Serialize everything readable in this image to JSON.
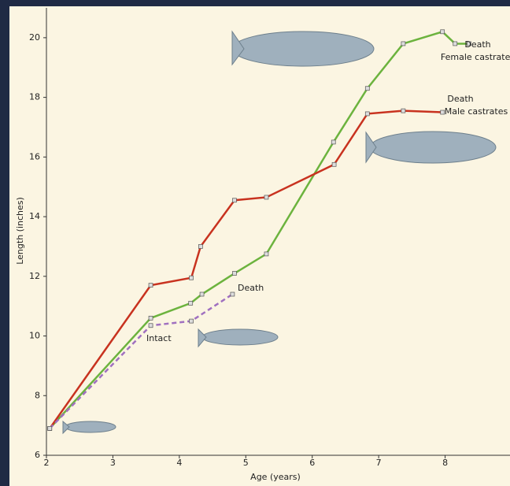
{
  "chart_data": {
    "type": "line",
    "x_label": "Age (years)",
    "y_label": "Length (inches)",
    "xlim": [
      2,
      9
    ],
    "xticks": [
      2,
      3,
      4,
      5,
      6,
      7,
      8
    ],
    "ylim": [
      6,
      21
    ],
    "yticks": [
      6,
      8,
      10,
      12,
      14,
      16,
      18,
      20
    ],
    "series": [
      {
        "color": "#6cb33e",
        "dashed": false,
        "x": [
          2.05,
          3.57,
          4.17,
          4.34,
          4.83,
          5.31,
          6.32,
          6.83,
          7.37,
          7.96,
          8.15,
          8.36
        ],
        "values": [
          6.9,
          10.6,
          11.1,
          11.4,
          12.1,
          12.75,
          16.5,
          18.3,
          19.8,
          20.2,
          19.8,
          19.8
        ]
      },
      {
        "color": "#c8321f",
        "dashed": false,
        "x": [
          2.05,
          3.57,
          4.18,
          4.32,
          4.83,
          5.31,
          6.33,
          6.83,
          7.37,
          7.96
        ],
        "values": [
          6.9,
          11.7,
          11.95,
          13.0,
          14.55,
          14.65,
          15.75,
          17.45,
          17.55,
          17.5
        ]
      },
      {
        "color": "#a070c0",
        "dashed": true,
        "x": [
          2.05,
          3.57,
          4.18,
          4.8
        ],
        "values": [
          6.9,
          10.35,
          10.5,
          11.4
        ]
      }
    ],
    "annotations": [
      "Death",
      "Female castrates",
      "Death",
      "Male castrates",
      "Death",
      "Intact"
    ]
  }
}
